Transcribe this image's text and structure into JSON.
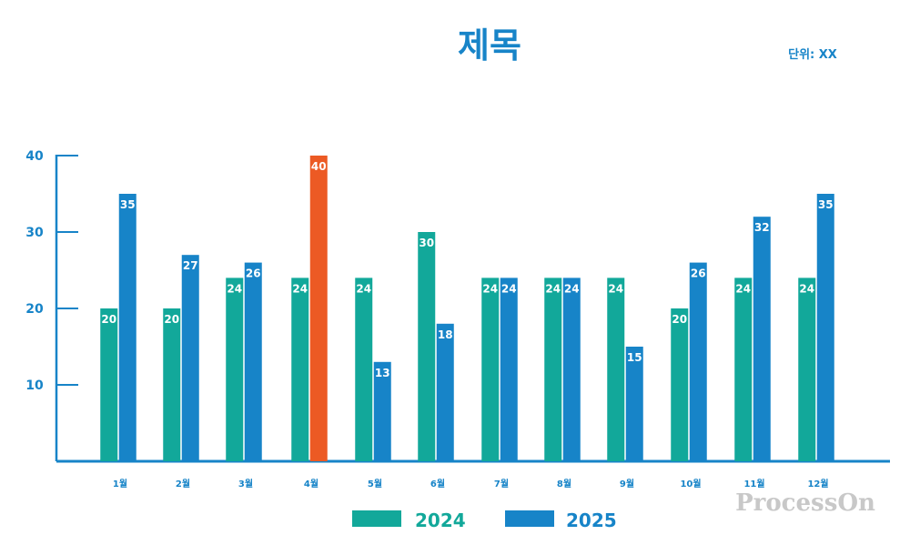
{
  "chart_data": {
    "type": "bar",
    "title": "제목",
    "unit_label": "단위: XX",
    "categories": [
      "1월",
      "2월",
      "3월",
      "4월",
      "5월",
      "6월",
      "7월",
      "8월",
      "9월",
      "10월",
      "11월",
      "12월"
    ],
    "series": [
      {
        "name": "2024",
        "color": "#12a89a",
        "values": [
          20,
          20,
          24,
          24,
          24,
          30,
          24,
          24,
          24,
          20,
          24,
          24
        ]
      },
      {
        "name": "2025",
        "color": "#1784c8",
        "values": [
          35,
          27,
          26,
          40,
          13,
          18,
          24,
          24,
          15,
          26,
          32,
          35
        ]
      }
    ],
    "highlight": {
      "series": 1,
      "index": 3,
      "color": "#ec5a24"
    },
    "yticks": [
      10,
      20,
      30,
      40
    ],
    "ylim": [
      0,
      40
    ],
    "grid": false,
    "legend_position": "bottom"
  },
  "watermark": "ProcessOn"
}
